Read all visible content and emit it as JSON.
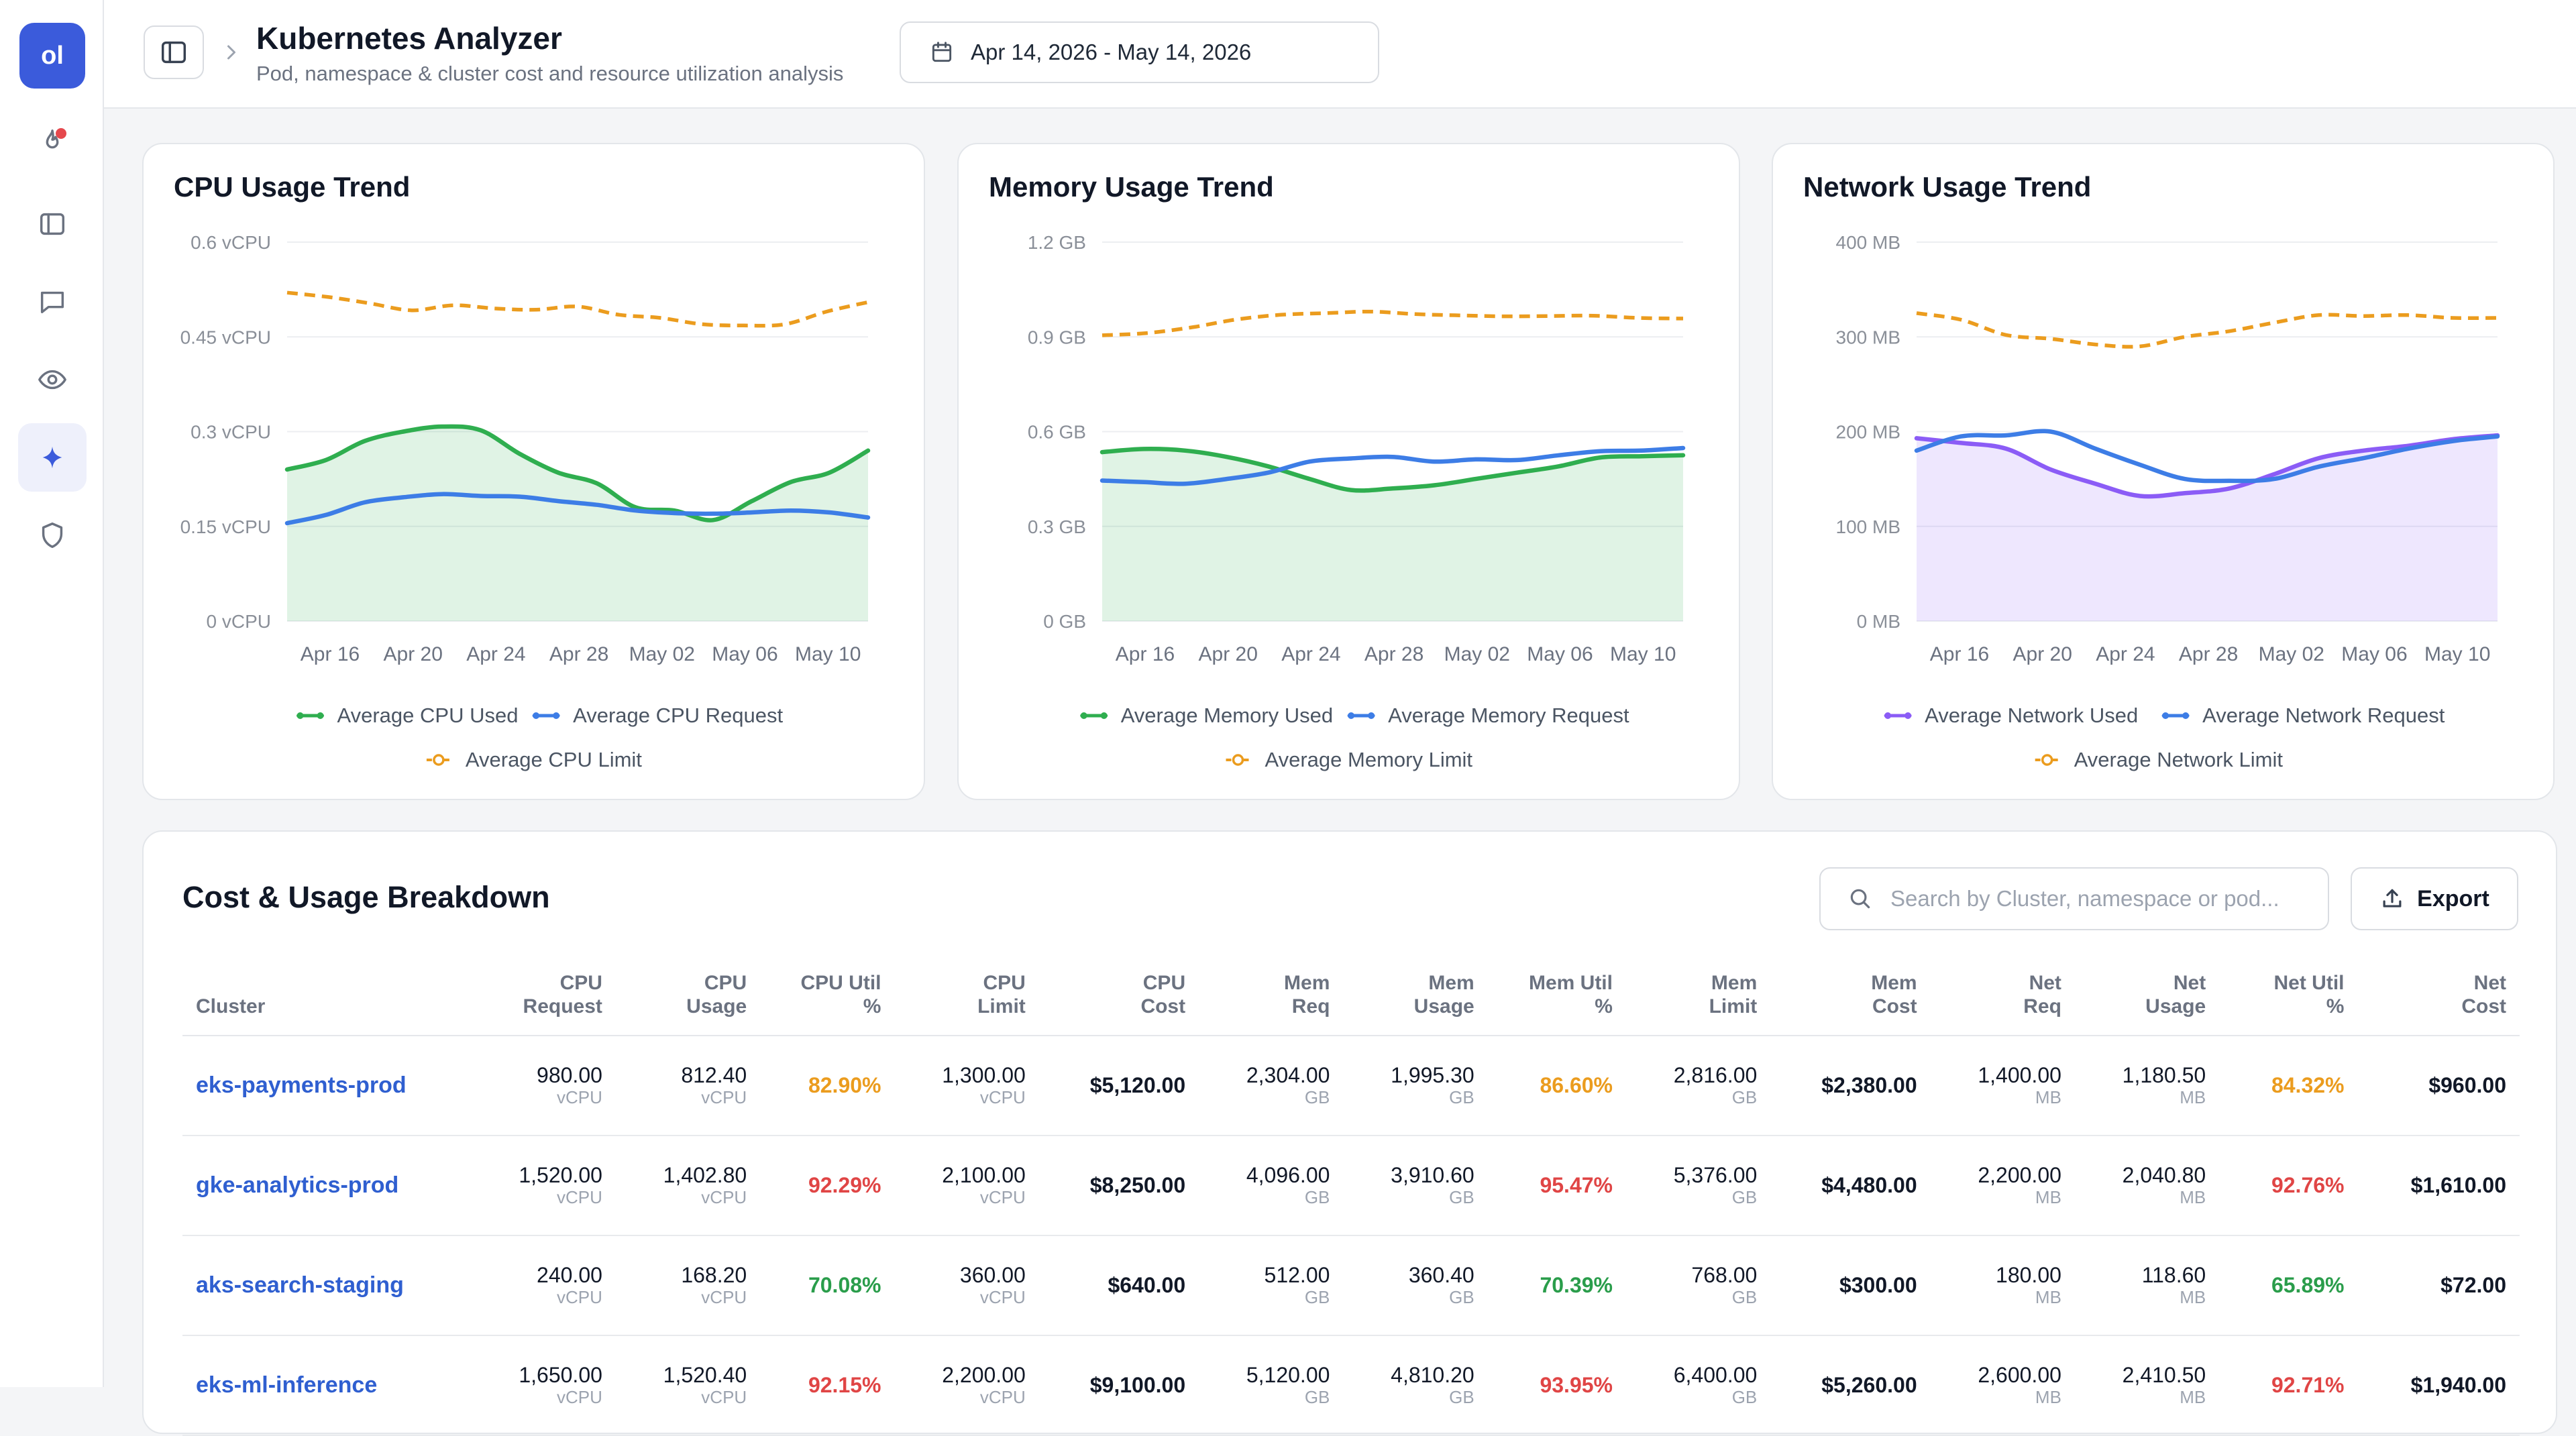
{
  "sidebar": {
    "logo": "ol",
    "items": [
      {
        "icon": "flame-icon",
        "badge": true
      },
      {
        "icon": "sidebar-panel-icon"
      },
      {
        "icon": "chat-icon"
      },
      {
        "icon": "eye-icon"
      },
      {
        "icon": "sparkle-icon",
        "active": true
      },
      {
        "icon": "shield-icon"
      }
    ]
  },
  "header": {
    "title": "Kubernetes Analyzer",
    "subtitle": "Pod, namespace & cluster cost and resource utilization analysis",
    "date_range": "Apr 14, 2026 - May 14, 2026"
  },
  "colors": {
    "used": "#2fae4f",
    "request": "#3d7de6",
    "limit": "#eb9c1e",
    "network_used": "#8b5cf6",
    "high": "#e04545",
    "mid": "#eb9c1e",
    "ok": "#2a9d4b"
  },
  "chart_data": [
    {
      "type": "line",
      "title": "CPU Usage Trend",
      "x_ticks": [
        "Apr 16",
        "Apr 20",
        "Apr 24",
        "Apr 28",
        "May 02",
        "May 06",
        "May 10"
      ],
      "y_ticks": [
        "0 vCPU",
        "0.15 vCPU",
        "0.3 vCPU",
        "0.45 vCPU",
        "0.6 vCPU"
      ],
      "ylim": [
        0,
        0.6
      ],
      "series": [
        {
          "name": "Average CPU Used",
          "style": "area",
          "color": "#2fae4f",
          "values": [
            0.24,
            0.255,
            0.285,
            0.3,
            0.308,
            0.302,
            0.265,
            0.235,
            0.218,
            0.18,
            0.175,
            0.16,
            0.19,
            0.22,
            0.235,
            0.27
          ]
        },
        {
          "name": "Average CPU Request",
          "style": "line",
          "color": "#3d7de6",
          "values": [
            0.155,
            0.168,
            0.188,
            0.196,
            0.201,
            0.198,
            0.197,
            0.19,
            0.184,
            0.175,
            0.171,
            0.17,
            0.172,
            0.175,
            0.172,
            0.164
          ]
        },
        {
          "name": "Average CPU Limit",
          "style": "dashed",
          "color": "#eb9c1e",
          "values": [
            0.52,
            0.513,
            0.503,
            0.492,
            0.5,
            0.495,
            0.493,
            0.498,
            0.485,
            0.48,
            0.47,
            0.468,
            0.47,
            0.49,
            0.505
          ]
        }
      ]
    },
    {
      "type": "line",
      "title": "Memory Usage Trend",
      "x_ticks": [
        "Apr 16",
        "Apr 20",
        "Apr 24",
        "Apr 28",
        "May 02",
        "May 06",
        "May 10"
      ],
      "y_ticks": [
        "0 GB",
        "0.3 GB",
        "0.6 GB",
        "0.9 GB",
        "1.2 GB"
      ],
      "ylim": [
        0,
        1.2
      ],
      "series": [
        {
          "name": "Average Memory Used",
          "style": "area",
          "color": "#2fae4f",
          "values": [
            0.535,
            0.545,
            0.54,
            0.52,
            0.49,
            0.45,
            0.415,
            0.42,
            0.43,
            0.45,
            0.47,
            0.49,
            0.518,
            0.522,
            0.525
          ]
        },
        {
          "name": "Average Memory Request",
          "style": "line",
          "color": "#3d7de6",
          "values": [
            0.445,
            0.44,
            0.435,
            0.45,
            0.47,
            0.505,
            0.515,
            0.52,
            0.505,
            0.512,
            0.51,
            0.525,
            0.538,
            0.54,
            0.548
          ]
        },
        {
          "name": "Average Memory Limit",
          "style": "dashed",
          "color": "#eb9c1e",
          "values": [
            0.905,
            0.912,
            0.93,
            0.955,
            0.97,
            0.975,
            0.98,
            0.972,
            0.968,
            0.965,
            0.966,
            0.967,
            0.96,
            0.958
          ]
        }
      ]
    },
    {
      "type": "line",
      "title": "Network Usage Trend",
      "x_ticks": [
        "Apr 16",
        "Apr 20",
        "Apr 24",
        "Apr 28",
        "May 02",
        "May 06",
        "May 10"
      ],
      "y_ticks": [
        "0 MB",
        "100 MB",
        "200 MB",
        "300 MB",
        "400 MB"
      ],
      "ylim": [
        0,
        400
      ],
      "series": [
        {
          "name": "Average Network Used",
          "style": "area",
          "color": "#8b5cf6",
          "values": [
            193,
            188,
            182,
            160,
            145,
            132,
            135,
            140,
            155,
            172,
            180,
            185,
            192,
            196
          ]
        },
        {
          "name": "Average Network Request",
          "style": "line",
          "color": "#3d7de6",
          "values": [
            180,
            195,
            196,
            200,
            182,
            165,
            150,
            148,
            150,
            163,
            172,
            182,
            190,
            195
          ]
        },
        {
          "name": "Average Network Limit",
          "style": "dashed",
          "color": "#eb9c1e",
          "values": [
            325,
            318,
            302,
            298,
            292,
            290,
            300,
            306,
            315,
            323,
            322,
            323,
            320,
            320
          ]
        }
      ]
    }
  ],
  "table": {
    "title": "Cost & Usage Breakdown",
    "search_placeholder": "Search by Cluster, namespace or pod...",
    "export_label": "Export",
    "columns": [
      [
        "Cluster",
        ""
      ],
      [
        "CPU",
        "Request"
      ],
      [
        "CPU",
        "Usage"
      ],
      [
        "CPU Util",
        "%"
      ],
      [
        "CPU",
        "Limit"
      ],
      [
        "CPU",
        "Cost"
      ],
      [
        "Mem",
        "Req"
      ],
      [
        "Mem",
        "Usage"
      ],
      [
        "Mem Util",
        "%"
      ],
      [
        "Mem",
        "Limit"
      ],
      [
        "Mem",
        "Cost"
      ],
      [
        "Net",
        "Req"
      ],
      [
        "Net",
        "Usage"
      ],
      [
        "Net Util",
        "%"
      ],
      [
        "Net",
        "Cost"
      ]
    ],
    "rows": [
      {
        "cluster": "eks-payments-prod",
        "cpu_request": "980.00",
        "cpu_usage": "812.40",
        "cpu_util": "82.90%",
        "cpu_util_level": "mid",
        "cpu_limit": "1,300.00",
        "cpu_cost": "$5,120.00",
        "mem_req": "2,304.00",
        "mem_usage": "1,995.30",
        "mem_util": "86.60%",
        "mem_util_level": "mid",
        "mem_limit": "2,816.00",
        "mem_cost": "$2,380.00",
        "net_req": "1,400.00",
        "net_usage": "1,180.50",
        "net_util": "84.32%",
        "net_util_level": "mid",
        "net_cost": "$960.00"
      },
      {
        "cluster": "gke-analytics-prod",
        "cpu_request": "1,520.00",
        "cpu_usage": "1,402.80",
        "cpu_util": "92.29%",
        "cpu_util_level": "high",
        "cpu_limit": "2,100.00",
        "cpu_cost": "$8,250.00",
        "mem_req": "4,096.00",
        "mem_usage": "3,910.60",
        "mem_util": "95.47%",
        "mem_util_level": "high",
        "mem_limit": "5,376.00",
        "mem_cost": "$4,480.00",
        "net_req": "2,200.00",
        "net_usage": "2,040.80",
        "net_util": "92.76%",
        "net_util_level": "high",
        "net_cost": "$1,610.00"
      },
      {
        "cluster": "aks-search-staging",
        "cpu_request": "240.00",
        "cpu_usage": "168.20",
        "cpu_util": "70.08%",
        "cpu_util_level": "ok",
        "cpu_limit": "360.00",
        "cpu_cost": "$640.00",
        "mem_req": "512.00",
        "mem_usage": "360.40",
        "mem_util": "70.39%",
        "mem_util_level": "ok",
        "mem_limit": "768.00",
        "mem_cost": "$300.00",
        "net_req": "180.00",
        "net_usage": "118.60",
        "net_util": "65.89%",
        "net_util_level": "ok",
        "net_cost": "$72.00"
      },
      {
        "cluster": "eks-ml-inference",
        "cpu_request": "1,650.00",
        "cpu_usage": "1,520.40",
        "cpu_util": "92.15%",
        "cpu_util_level": "high",
        "cpu_limit": "2,200.00",
        "cpu_cost": "$9,100.00",
        "mem_req": "5,120.00",
        "mem_usage": "4,810.20",
        "mem_util": "93.95%",
        "mem_util_level": "high",
        "mem_limit": "6,400.00",
        "mem_cost": "$5,260.00",
        "net_req": "2,600.00",
        "net_usage": "2,410.50",
        "net_util": "92.71%",
        "net_util_level": "high",
        "net_cost": "$1,940.00"
      }
    ],
    "units": {
      "cpu": "vCPU",
      "mem": "GB",
      "net": "MB"
    }
  }
}
